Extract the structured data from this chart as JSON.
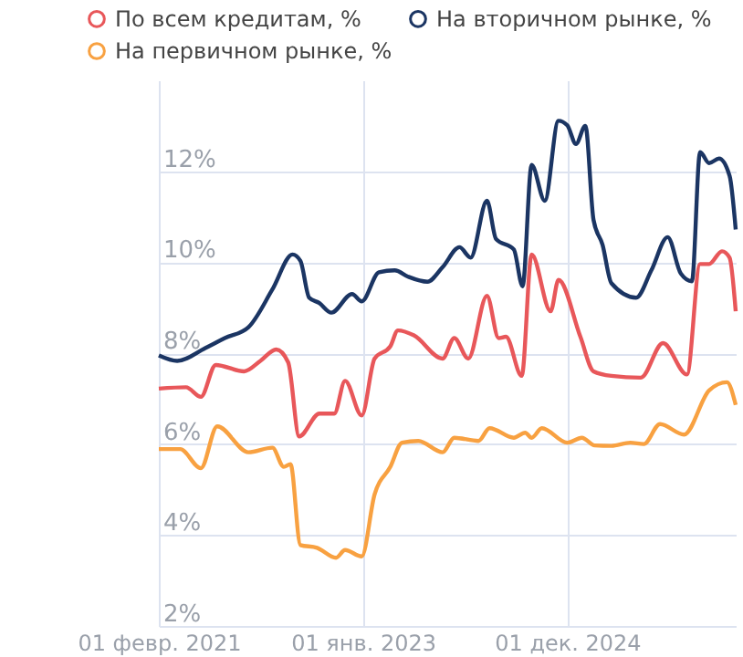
{
  "chart_data": {
    "type": "line",
    "xticks": [
      {
        "value": "2021-02-01",
        "label": "01 февр. 2021"
      },
      {
        "value": "2023-01-01",
        "label": "01 янв. 2023"
      },
      {
        "value": "2024-12-01",
        "label": "01 дек. 2024"
      }
    ],
    "xlim": [
      "2021-02-01",
      "2026-07-01"
    ],
    "ylim": [
      2,
      14
    ],
    "yticks": [
      {
        "value": 2,
        "label": "2%"
      },
      {
        "value": 4,
        "label": "4%"
      },
      {
        "value": 6,
        "label": "6%"
      },
      {
        "value": 8,
        "label": "8%"
      },
      {
        "value": 10,
        "label": "10%"
      },
      {
        "value": 12,
        "label": "12%"
      }
    ],
    "grid": true,
    "legend": "top left",
    "marker": "none",
    "line_style": "solid",
    "series": [
      {
        "name": "По всем кредитам, %",
        "color": "#e8575a",
        "x": [
          "2021-02-01",
          "2021-05-05",
          "2021-06-25",
          "2021-08-15",
          "2021-11-20",
          "2022-01-15",
          "2022-03-10",
          "2022-04-20",
          "2022-05-28",
          "2022-08-05",
          "2022-09-25",
          "2022-11-01",
          "2022-12-28",
          "2023-02-10",
          "2023-04-05",
          "2023-05-01",
          "2023-06-25",
          "2023-10-01",
          "2023-11-10",
          "2023-12-28",
          "2024-03-01",
          "2024-04-10",
          "2024-05-05",
          "2024-06-28",
          "2024-08-01",
          "2024-10-05",
          "2024-11-01",
          "2025-01-15",
          "2025-03-01",
          "2025-05-01",
          "2025-08-10",
          "2025-10-25",
          "2026-01-15",
          "2026-03-01",
          "2026-04-01",
          "2026-05-15",
          "2026-06-10",
          "2026-07-01"
        ],
        "values": [
          7.22,
          7.25,
          7.04,
          7.74,
          7.6,
          7.83,
          8.08,
          7.8,
          6.17,
          6.67,
          6.67,
          7.39,
          6.63,
          7.88,
          8.15,
          8.5,
          8.39,
          7.88,
          8.33,
          7.88,
          9.26,
          8.33,
          8.36,
          7.5,
          10.17,
          8.92,
          9.61,
          8.36,
          7.6,
          7.5,
          7.46,
          8.22,
          7.53,
          9.96,
          9.96,
          10.24,
          10.1,
          8.92
        ]
      },
      {
        "name": "На первичном рынке, %",
        "color": "#f8a141",
        "x": [
          "2021-02-01",
          "2021-04-15",
          "2021-06-25",
          "2021-08-20",
          "2021-12-05",
          "2022-02-25",
          "2022-04-05",
          "2022-04-28",
          "2022-06-01",
          "2022-07-28",
          "2022-10-01",
          "2022-11-01",
          "2022-12-28",
          "2023-02-10",
          "2023-04-05",
          "2023-05-15",
          "2023-07-10",
          "2023-10-01",
          "2023-11-10",
          "2024-02-01",
          "2024-03-10",
          "2024-06-01",
          "2024-07-10",
          "2024-08-01",
          "2024-09-05",
          "2024-12-01",
          "2025-01-20",
          "2025-03-05",
          "2025-05-01",
          "2025-07-05",
          "2025-08-20",
          "2025-10-15",
          "2026-01-05",
          "2026-04-01",
          "2026-06-01",
          "2026-07-01"
        ],
        "values": [
          5.89,
          5.89,
          5.47,
          6.39,
          5.82,
          5.92,
          5.5,
          5.56,
          3.78,
          3.72,
          3.5,
          3.67,
          3.53,
          4.89,
          5.5,
          6.03,
          6.07,
          5.82,
          6.14,
          6.07,
          6.35,
          6.14,
          6.25,
          6.14,
          6.35,
          6.03,
          6.14,
          5.97,
          5.96,
          6.03,
          6.0,
          6.44,
          6.21,
          7.18,
          7.36,
          6.86
        ]
      },
      {
        "name": "На вторичном рынке, %",
        "color": "#1b3563",
        "x": [
          "2021-02-01",
          "2021-04-05",
          "2021-07-10",
          "2021-09-15",
          "2021-12-05",
          "2022-02-25",
          "2022-05-05",
          "2022-06-01",
          "2022-07-01",
          "2022-08-05",
          "2022-09-15",
          "2022-11-25",
          "2022-12-28",
          "2023-02-25",
          "2023-04-20",
          "2023-06-05",
          "2023-08-10",
          "2023-10-01",
          "2023-11-28",
          "2024-01-05",
          "2024-03-01",
          "2024-04-01",
          "2024-06-01",
          "2024-07-01",
          "2024-08-01",
          "2024-09-15",
          "2024-11-01",
          "2024-12-01",
          "2024-12-31",
          "2025-02-01",
          "2025-03-01",
          "2025-04-01",
          "2025-05-01",
          "2025-07-25",
          "2025-09-15",
          "2025-11-10",
          "2025-12-25",
          "2026-02-01",
          "2026-03-01",
          "2026-04-01",
          "2026-05-05",
          "2026-06-10",
          "2026-07-01"
        ],
        "values": [
          7.95,
          7.83,
          8.11,
          8.33,
          8.57,
          9.4,
          10.17,
          10.03,
          9.22,
          9.1,
          8.89,
          9.3,
          9.14,
          9.78,
          9.82,
          9.68,
          9.57,
          9.89,
          10.33,
          10.1,
          11.35,
          10.51,
          10.28,
          9.47,
          12.14,
          11.35,
          13.11,
          13.01,
          12.6,
          13.0,
          10.93,
          10.38,
          9.54,
          9.22,
          9.82,
          10.55,
          9.75,
          9.58,
          12.42,
          12.18,
          12.28,
          11.9,
          10.72
        ]
      }
    ]
  }
}
